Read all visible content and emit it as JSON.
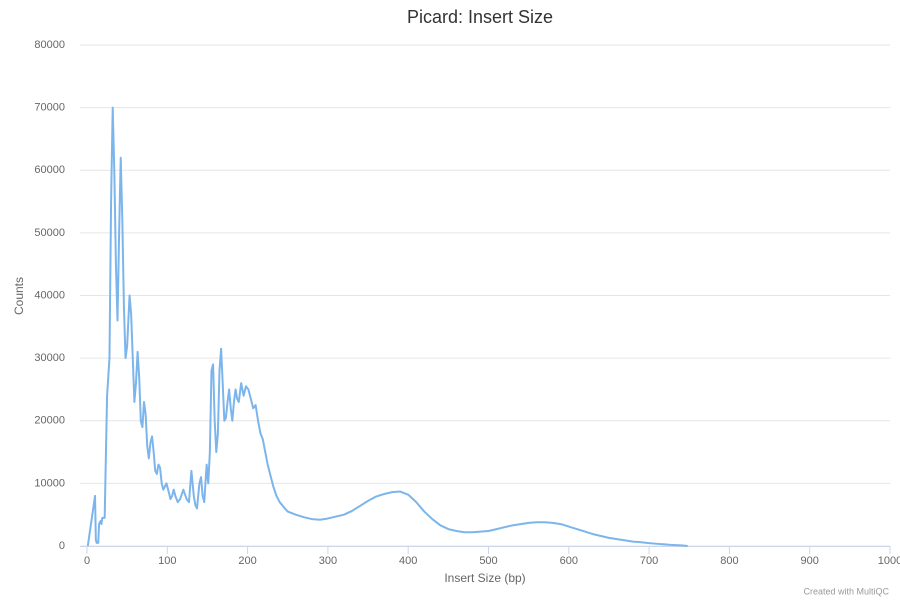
{
  "chart_data": {
    "type": "line",
    "title": "Picard: Insert Size",
    "x_label": "Insert Size (bp)",
    "y_label": "Counts",
    "credit": "Created with MultiQC",
    "xlim": [
      0,
      1000
    ],
    "xticks": [
      0,
      100,
      200,
      300,
      400,
      500,
      600,
      700,
      800,
      900,
      1000
    ],
    "ylim": [
      0,
      80000
    ],
    "yticks": [
      0,
      10000,
      20000,
      30000,
      40000,
      50000,
      60000,
      70000,
      80000
    ],
    "grid": true,
    "x": [
      1,
      10,
      11,
      12,
      14,
      15,
      17,
      18,
      19,
      22,
      25,
      28,
      30,
      32,
      34,
      36,
      38,
      40,
      42,
      44,
      46,
      48,
      50,
      53,
      55,
      57,
      59,
      61,
      63,
      65,
      67,
      69,
      71,
      73,
      75,
      77,
      79,
      81,
      83,
      85,
      87,
      89,
      91,
      93,
      95,
      97,
      99,
      101,
      104,
      106,
      108,
      110,
      113,
      116,
      120,
      124,
      127,
      130,
      133,
      135,
      137,
      140,
      142,
      144,
      146,
      149,
      151,
      153,
      155,
      157,
      159,
      161,
      163,
      165,
      167,
      169,
      171,
      173,
      175,
      177,
      179,
      181,
      183,
      185,
      187,
      189,
      192,
      195,
      198,
      201,
      204,
      207,
      210,
      213,
      216,
      219,
      222,
      225,
      228,
      232,
      236,
      240,
      245,
      250,
      260,
      270,
      280,
      290,
      300,
      310,
      320,
      330,
      340,
      350,
      360,
      370,
      380,
      390,
      400,
      410,
      420,
      430,
      440,
      450,
      460,
      470,
      480,
      490,
      500,
      510,
      520,
      530,
      540,
      550,
      560,
      570,
      580,
      590,
      600,
      610,
      620,
      630,
      640,
      650,
      660,
      670,
      680,
      690,
      700,
      710,
      720,
      730,
      740,
      748
    ],
    "series": [
      {
        "name": "Insert Size",
        "color": "#7cb5ec",
        "values": [
          0,
          8000,
          1000,
          500,
          500,
          3500,
          4000,
          3500,
          4500,
          4500,
          24000,
          30000,
          55000,
          70000,
          60000,
          45000,
          36000,
          50000,
          62000,
          52000,
          38000,
          30000,
          32000,
          40000,
          37000,
          30000,
          23000,
          26000,
          31000,
          27000,
          20000,
          19000,
          23000,
          21000,
          16000,
          14000,
          16500,
          17500,
          15000,
          12000,
          11500,
          13000,
          12500,
          10000,
          9000,
          9500,
          10000,
          9000,
          7500,
          8000,
          9000,
          8000,
          7000,
          7500,
          9000,
          7500,
          7000,
          12000,
          8000,
          6500,
          6000,
          10000,
          11000,
          8000,
          7000,
          13000,
          10000,
          15000,
          28000,
          29000,
          20000,
          15000,
          18000,
          28000,
          31500,
          26000,
          20000,
          20500,
          23000,
          25000,
          22000,
          20000,
          23000,
          25000,
          23500,
          23000,
          26000,
          24000,
          25500,
          25000,
          23500,
          22000,
          22500,
          20000,
          18000,
          17000,
          15000,
          13000,
          11500,
          9500,
          8000,
          7000,
          6200,
          5500,
          5000,
          4600,
          4300,
          4200,
          4400,
          4700,
          5000,
          5600,
          6400,
          7200,
          7900,
          8300,
          8600,
          8700,
          8200,
          7000,
          5500,
          4300,
          3300,
          2700,
          2400,
          2200,
          2200,
          2300,
          2400,
          2700,
          3000,
          3300,
          3500,
          3700,
          3800,
          3800,
          3700,
          3500,
          3100,
          2700,
          2300,
          1900,
          1600,
          1300,
          1100,
          900,
          700,
          600,
          450,
          350,
          250,
          150,
          100,
          0
        ]
      }
    ]
  }
}
